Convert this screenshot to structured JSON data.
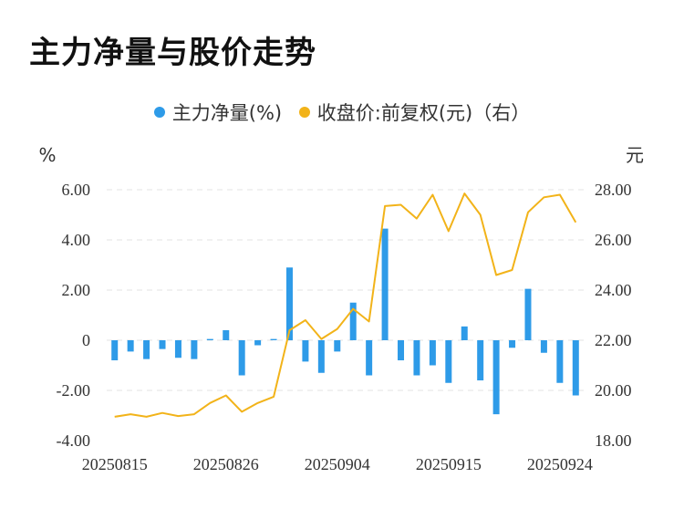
{
  "title": "主力净量与股价走势",
  "legend": {
    "bar_label": "主力净量(%)",
    "line_label": "收盘价:前复权(元)（右）",
    "bar_color": "#2e9be8",
    "line_color": "#f2b319"
  },
  "axis": {
    "left_unit": "%",
    "right_unit": "元",
    "left_ticks": [
      "6.00",
      "4.00",
      "2.00",
      "0",
      "-2.00",
      "-4.00"
    ],
    "right_ticks": [
      "28.00",
      "26.00",
      "24.00",
      "22.00",
      "20.00",
      "18.00"
    ],
    "x_ticks": [
      {
        "index": 0,
        "label": "20250815"
      },
      {
        "index": 7,
        "label": "20250826"
      },
      {
        "index": 14,
        "label": "20250904"
      },
      {
        "index": 21,
        "label": "20250915"
      },
      {
        "index": 28,
        "label": "20250924"
      }
    ]
  },
  "chart_data": {
    "type": "bar+line",
    "left_ylim": [
      -4,
      6
    ],
    "right_ylim": [
      18,
      28
    ],
    "grid": true,
    "legend_position": "top",
    "series": [
      {
        "name": "主力净量(%)",
        "type": "bar",
        "axis": "left",
        "values": [
          -0.8,
          -0.45,
          -0.75,
          -0.35,
          -0.7,
          -0.75,
          0.05,
          0.4,
          -1.4,
          -0.2,
          0.05,
          2.9,
          -0.85,
          -1.3,
          -0.45,
          1.5,
          -1.4,
          4.45,
          -0.8,
          -1.4,
          -1.0,
          -1.7,
          0.55,
          -1.6,
          -2.95,
          -0.3,
          2.05,
          -0.5,
          -1.7,
          -2.2
        ]
      },
      {
        "name": "收盘价:前复权(元)（右）",
        "type": "line",
        "axis": "right",
        "values": [
          18.95,
          19.05,
          18.95,
          19.1,
          18.98,
          19.05,
          19.5,
          19.8,
          19.15,
          19.5,
          19.75,
          22.4,
          22.8,
          22.05,
          22.45,
          23.25,
          22.75,
          27.35,
          27.4,
          26.85,
          27.8,
          26.35,
          27.85,
          27.0,
          24.6,
          24.8,
          27.1,
          27.7,
          27.8,
          26.7
        ]
      }
    ]
  }
}
